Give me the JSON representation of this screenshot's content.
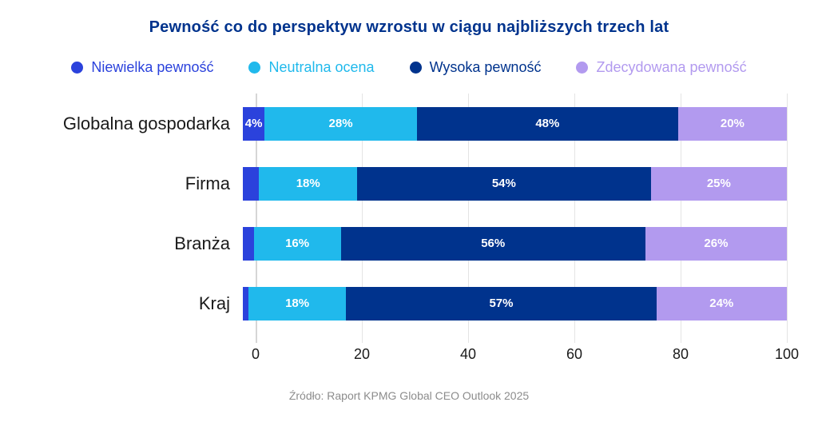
{
  "title": "Pewność co do perspektyw wzrostu w ciągu najbliższych trzech lat",
  "source": "Źródło: Raport KPMG Global CEO Outlook 2025",
  "colors": {
    "title": "#00338D",
    "axis_text": "#1A1A1A",
    "source_text": "#8C8C8C",
    "gridline": "#E4E4E4",
    "bar_label_text": "#FFFFFF"
  },
  "legend": {
    "position": "top",
    "items": [
      {
        "label": "Niewielka pewność",
        "color": "#2B42DC"
      },
      {
        "label": "Neutralna ocena",
        "color": "#20B9EC"
      },
      {
        "label": "Wysoka pewność",
        "color": "#00338D"
      },
      {
        "label": "Zdecydowana pewność",
        "color": "#B29AEF"
      }
    ]
  },
  "chart_data": {
    "type": "bar",
    "orientation": "horizontal",
    "stacked": true,
    "title": "Pewność co do perspektyw wzrostu w ciągu najbliższych trzech lat",
    "categories": [
      "Globalna gospodarka",
      "Firma",
      "Branża",
      "Kraj"
    ],
    "series": [
      {
        "name": "Niewielka pewność",
        "color": "#2B42DC",
        "values": [
          4,
          3,
          2,
          1
        ]
      },
      {
        "name": "Neutralna ocena",
        "color": "#20B9EC",
        "values": [
          28,
          18,
          16,
          18
        ]
      },
      {
        "name": "Wysoka pewność",
        "color": "#00338D",
        "values": [
          48,
          54,
          56,
          57
        ]
      },
      {
        "name": "Zdecydowana pewność",
        "color": "#B29AEF",
        "values": [
          20,
          25,
          26,
          24
        ]
      }
    ],
    "data_labels": [
      [
        "4%",
        "28%",
        "48%",
        "20%"
      ],
      [
        "",
        "18%",
        "54%",
        "25%"
      ],
      [
        "",
        "16%",
        "56%",
        "26%"
      ],
      [
        "",
        "18%",
        "57%",
        "24%"
      ]
    ],
    "xlim": [
      0,
      100
    ],
    "x_ticks": [
      "0",
      "20",
      "40",
      "60",
      "80",
      "100"
    ],
    "grid": true,
    "legend_position": "top"
  }
}
